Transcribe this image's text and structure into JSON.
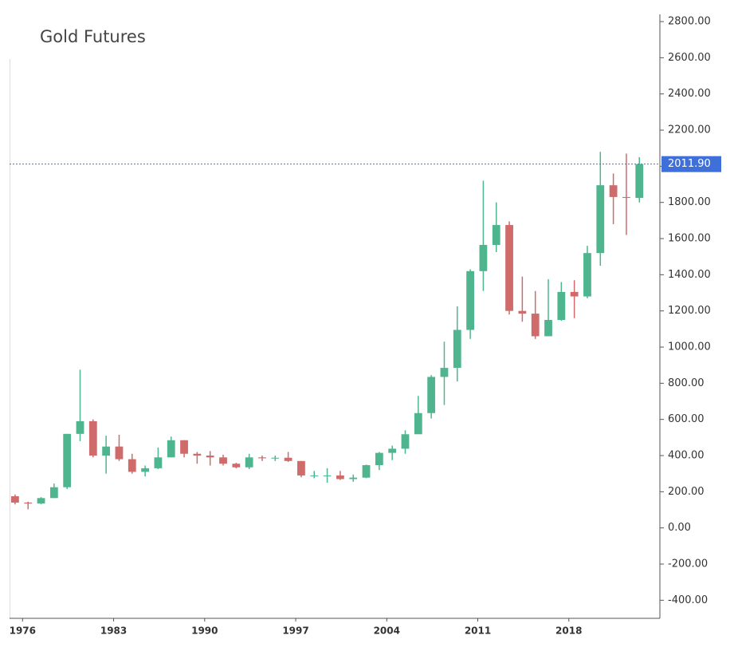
{
  "chart_data": {
    "type": "candlestick",
    "title": "Gold Futures",
    "x": [
      1975,
      1976,
      1977,
      1978,
      1979,
      1980,
      1981,
      1982,
      1983,
      1984,
      1985,
      1986,
      1987,
      1988,
      1989,
      1990,
      1991,
      1992,
      1993,
      1994,
      1995,
      1996,
      1997,
      1998,
      1999,
      2000,
      2001,
      2002,
      2003,
      2004,
      2005,
      2006,
      2007,
      2008,
      2009,
      2010,
      2011,
      2012,
      2013,
      2014,
      2015,
      2016,
      2017,
      2018,
      2019,
      2020,
      2021,
      2022,
      2023
    ],
    "open": [
      175,
      140,
      135,
      165,
      225,
      520,
      590,
      400,
      450,
      380,
      310,
      330,
      390,
      485,
      410,
      400,
      390,
      355,
      335,
      390,
      385,
      388,
      370,
      290,
      290,
      290,
      270,
      278,
      347,
      415,
      438,
      518,
      635,
      835,
      885,
      1095,
      1420,
      1565,
      1675,
      1200,
      1185,
      1060,
      1150,
      1305,
      1280,
      1520,
      1895,
      1830,
      1825
    ],
    "high": [
      185,
      145,
      170,
      245,
      520,
      875,
      600,
      510,
      515,
      410,
      345,
      445,
      505,
      485,
      420,
      425,
      405,
      360,
      410,
      400,
      400,
      420,
      370,
      315,
      330,
      315,
      295,
      350,
      420,
      455,
      540,
      730,
      845,
      1030,
      1225,
      1430,
      1920,
      1800,
      1695,
      1390,
      1310,
      1375,
      1360,
      1370,
      1560,
      2080,
      1960,
      2070,
      2050
    ],
    "low": [
      130,
      103,
      130,
      165,
      215,
      480,
      390,
      300,
      370,
      300,
      285,
      325,
      390,
      390,
      355,
      345,
      345,
      330,
      325,
      370,
      370,
      365,
      280,
      275,
      250,
      265,
      255,
      275,
      320,
      375,
      410,
      520,
      605,
      680,
      810,
      1045,
      1310,
      1525,
      1180,
      1140,
      1045,
      1070,
      1145,
      1160,
      1270,
      1450,
      1680,
      1620,
      1800
    ],
    "close": [
      140,
      135,
      165,
      225,
      520,
      590,
      400,
      450,
      380,
      310,
      330,
      390,
      485,
      410,
      400,
      390,
      355,
      335,
      390,
      385,
      388,
      370,
      290,
      290,
      290,
      270,
      278,
      347,
      415,
      438,
      518,
      635,
      835,
      885,
      1095,
      1420,
      1565,
      1675,
      1200,
      1185,
      1060,
      1150,
      1305,
      1280,
      1520,
      1895,
      1830,
      1825,
      2011.9
    ],
    "up_color": "#4fb58f",
    "down_color": "#cf6b6b",
    "xlim": [
      1975,
      2025
    ],
    "xticks": [
      1976,
      1983,
      1990,
      1997,
      2004,
      2011,
      2018
    ],
    "ylim": [
      -500,
      2840
    ],
    "yticks": [
      {
        "value": -400,
        "label": "-400.00"
      },
      {
        "value": -200,
        "label": "-200.00"
      },
      {
        "value": 0,
        "label": "0.00"
      },
      {
        "value": 200,
        "label": "200.00"
      },
      {
        "value": 400,
        "label": "400.00"
      },
      {
        "value": 600,
        "label": "600.00"
      },
      {
        "value": 800,
        "label": "800.00"
      },
      {
        "value": 1000,
        "label": "1000.00"
      },
      {
        "value": 1200,
        "label": "1200.00"
      },
      {
        "value": 1400,
        "label": "1400.00"
      },
      {
        "value": 1600,
        "label": "1600.00"
      },
      {
        "value": 1800,
        "label": "1800.00"
      },
      {
        "value": 2000,
        "label": "2000.00"
      },
      {
        "value": 2200,
        "label": "2200.00"
      },
      {
        "value": 2400,
        "label": "2400.00"
      },
      {
        "value": 2600,
        "label": "2600.00"
      },
      {
        "value": 2800,
        "label": "2800.00"
      }
    ],
    "last_price": {
      "value": 2011.9,
      "label": "2011.90"
    },
    "last_price_color": "#3f6fd8",
    "grid": false
  }
}
